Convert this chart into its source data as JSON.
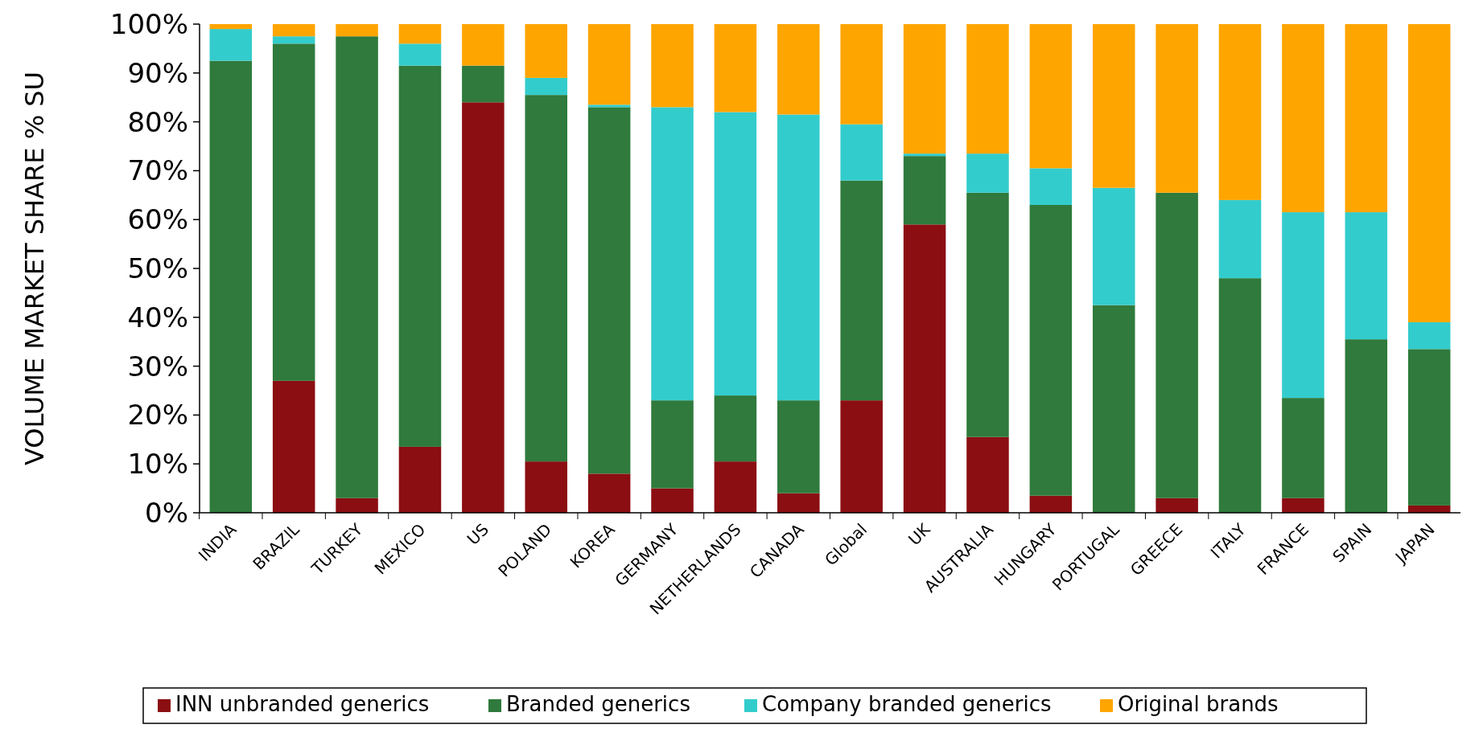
{
  "chart_data": {
    "type": "bar",
    "stacked": true,
    "ylabel": "VOLUME MARKET SHARE % SU",
    "legend": "bottom",
    "grid": false,
    "categories": [
      "INDIA",
      "BRAZIL",
      "TURKEY",
      "MEXICO",
      "US",
      "POLAND",
      "KOREA",
      "GERMANY",
      "NETHERLANDS",
      "CANADA",
      "Global",
      "UK",
      "AUSTRALIA",
      "HUNGARY",
      "PORTUGAL",
      "GREECE",
      "ITALY",
      "FRANCE",
      "SPAIN",
      "JAPAN"
    ],
    "ylim": [
      0,
      100
    ],
    "yticks": [
      {
        "value": 0,
        "label": "0%"
      },
      {
        "value": 10,
        "label": "10%"
      },
      {
        "value": 20,
        "label": "20%"
      },
      {
        "value": 30,
        "label": "30%"
      },
      {
        "value": 40,
        "label": "40%"
      },
      {
        "value": 50,
        "label": "50%"
      },
      {
        "value": 60,
        "label": "60%"
      },
      {
        "value": 70,
        "label": "70%"
      },
      {
        "value": 80,
        "label": "80%"
      },
      {
        "value": 90,
        "label": "90%"
      },
      {
        "value": 100,
        "label": "100%"
      }
    ],
    "series": [
      {
        "name": "INN unbranded generics",
        "color": "#8b0e12",
        "values": [
          0,
          27,
          3,
          13.5,
          84,
          10.5,
          8,
          5,
          10.5,
          4,
          23,
          59,
          15.5,
          3.5,
          0,
          3,
          0,
          3,
          0,
          1.5
        ]
      },
      {
        "name": "Branded generics",
        "color": "#2f7a3c",
        "values": [
          92.5,
          69,
          94.5,
          78,
          7.5,
          75,
          75,
          18,
          13.5,
          19,
          45,
          14,
          50,
          59.5,
          42.5,
          62.5,
          48,
          20.5,
          35.5,
          32
        ]
      },
      {
        "name": "Company branded generics",
        "color": "#33cccc",
        "values": [
          6.5,
          1.5,
          0,
          4.5,
          0,
          3.5,
          0.5,
          60,
          58,
          58.5,
          11.5,
          0.5,
          8,
          7.5,
          24,
          0,
          16,
          38,
          26,
          5.5
        ]
      },
      {
        "name": "Original brands",
        "color": "#ffa500",
        "values": [
          1,
          2.5,
          2.5,
          4,
          8.5,
          11,
          16.5,
          17,
          18,
          18.5,
          20.5,
          26.5,
          26.5,
          29.5,
          33.5,
          34.5,
          36,
          38.5,
          38.5,
          61
        ]
      }
    ]
  }
}
